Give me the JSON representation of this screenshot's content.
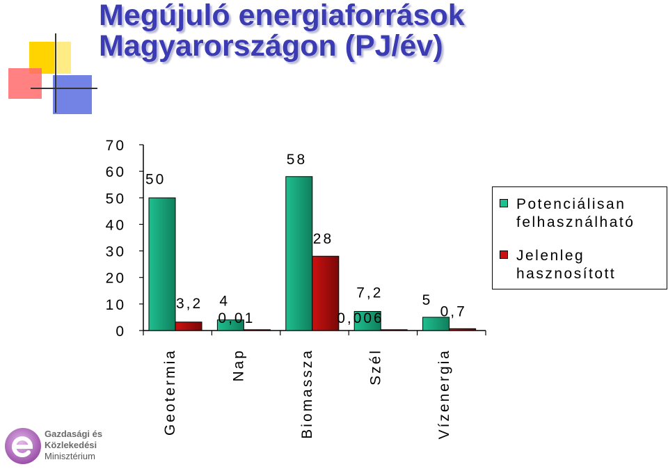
{
  "title": {
    "line1": "Megújuló energiaforrások",
    "line2": "Magyarországon  (PJ/év)"
  },
  "colors": {
    "title": "#3b3bb3",
    "series_potential": "#1fbf8f",
    "series_current": "#cc1111"
  },
  "chart_data": {
    "type": "bar",
    "title": "Megújuló energiaforrások Magyarországon  (PJ/év)",
    "categories": [
      "Geotermia",
      "Nap",
      "Biomassza",
      "Szél",
      "Vízenergia"
    ],
    "series": [
      {
        "name": "Potenciálisan felhasználható",
        "values": [
          50,
          4,
          58,
          7.2,
          5
        ],
        "labels": [
          "50",
          "4",
          "58",
          "7,2",
          "5"
        ]
      },
      {
        "name": "Jelenleg hasznosított",
        "values": [
          3.2,
          0.01,
          28,
          0.006,
          0.7
        ],
        "labels": [
          "3,2",
          "0,01",
          "28",
          "0,006",
          "0,7"
        ]
      }
    ],
    "ylim": [
      0,
      70
    ],
    "yticks": [
      "0",
      "10",
      "20",
      "30",
      "40",
      "50",
      "60",
      "70"
    ],
    "grid": false,
    "legend_position": "right"
  },
  "logo": {
    "line1": "Gazdasági és",
    "line2": "Közlekedési",
    "line3": "Minisztérium"
  }
}
